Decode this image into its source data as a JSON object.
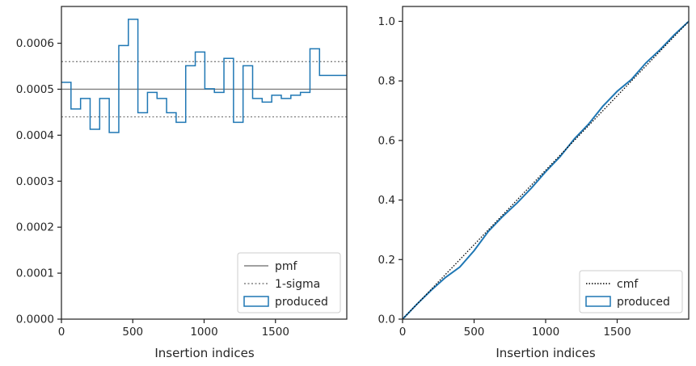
{
  "chart_data": [
    {
      "type": "step",
      "xlabel": "Insertion indices",
      "xlim": [
        0,
        2000
      ],
      "ylim": [
        0,
        0.00068
      ],
      "xticks": [
        0,
        500,
        1000,
        1500
      ],
      "xtick_labels": [
        "0",
        "500",
        "1000",
        "1500"
      ],
      "yticks": [
        0,
        0.0001,
        0.0002,
        0.0003,
        0.0004,
        0.0005,
        0.0006
      ],
      "ytick_labels": [
        "0.0000",
        "0.0001",
        "0.0002",
        "0.0003",
        "0.0004",
        "0.0005",
        "0.0006"
      ],
      "legend_position": "lower-right",
      "pmf": {
        "name": "pmf",
        "value": 0.0005,
        "color": "#808080"
      },
      "sigma": {
        "name": "1-sigma",
        "values": [
          0.00044,
          0.00056
        ],
        "color": "#808080"
      },
      "series": [
        {
          "name": "produced",
          "color": "#1f77b4",
          "bin_width": 67,
          "bin_edges_start": 0,
          "values": [
            0.000515,
            0.000457,
            0.00048,
            0.000413,
            0.00048,
            0.000406,
            0.000595,
            0.000652,
            0.000449,
            0.000493,
            0.00048,
            0.000449,
            0.000428,
            0.000551,
            0.000581,
            0.000501,
            0.000493,
            0.000567,
            0.000428,
            0.000551,
            0.00048,
            0.000472,
            0.000487,
            0.00048,
            0.000487,
            0.000493,
            0.000588,
            0.00053,
            0.00053,
            0.00053
          ]
        }
      ]
    },
    {
      "type": "line",
      "xlabel": "Insertion indices",
      "xlim": [
        0,
        2000
      ],
      "ylim": [
        0,
        1.05
      ],
      "xticks": [
        0,
        500,
        1000,
        1500
      ],
      "xtick_labels": [
        "0",
        "500",
        "1000",
        "1500"
      ],
      "yticks": [
        0,
        0.2,
        0.4,
        0.6,
        0.8,
        1.0
      ],
      "ytick_labels": [
        "0.0",
        "0.2",
        "0.4",
        "0.6",
        "0.8",
        "1.0"
      ],
      "legend_position": "lower-right",
      "cmf": {
        "name": "cmf",
        "color": "#000000"
      },
      "series": [
        {
          "name": "produced",
          "color": "#1f77b4",
          "x": [
            0,
            100,
            200,
            300,
            400,
            500,
            600,
            700,
            800,
            900,
            1000,
            1100,
            1200,
            1300,
            1400,
            1500,
            1600,
            1700,
            1800,
            1900,
            2000
          ],
          "y": [
            0.0,
            0.05,
            0.097,
            0.14,
            0.175,
            0.23,
            0.295,
            0.345,
            0.39,
            0.44,
            0.495,
            0.545,
            0.605,
            0.655,
            0.715,
            0.765,
            0.805,
            0.86,
            0.905,
            0.955,
            1.0
          ]
        }
      ]
    }
  ]
}
